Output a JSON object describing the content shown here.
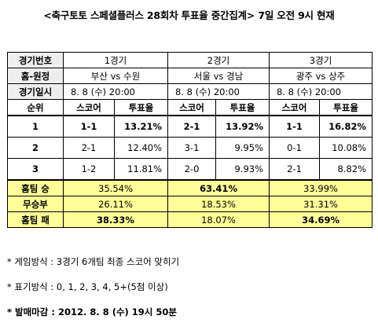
{
  "title": "<축구토토 스페셜플러스 28회차 투표율 중간집계> 7일 오전 9시 현재",
  "header": {
    "row_match": [
      "경기번호",
      "1경기",
      "2경기",
      "3경기"
    ],
    "row_teams": [
      "홈-원정",
      "부산 vs 수원",
      "서울 vs 경남",
      "광주 vs 상주"
    ],
    "row_date": [
      "경기일시",
      "8. 8 (수) 20:00",
      "8. 8 (수) 20:00",
      "8. 8 (수) 20:00"
    ],
    "row_cols": [
      "순위",
      "스코어",
      "투표율",
      "스코어",
      "투표율",
      "스코어",
      "투표율"
    ]
  },
  "rank_rows": [
    {
      "rank": "1",
      "cells": [
        "1-1",
        "13.21%",
        "2-1",
        "13.92%",
        "1-1",
        "16.82%"
      ]
    },
    {
      "rank": "2",
      "cells": [
        "2-1",
        "12.40%",
        "3-1",
        "9.95%",
        "0-1",
        "10.08%"
      ]
    },
    {
      "rank": "3",
      "cells": [
        "1-2",
        "11.81%",
        "2-0",
        "9.93%",
        "2-1",
        "8.82%"
      ]
    }
  ],
  "result_rows": [
    {
      "label": "홈팀 승",
      "values": [
        "35.54%",
        "63.41%",
        "33.99%"
      ],
      "bold": [
        false,
        true,
        false
      ]
    },
    {
      "label": "무승부",
      "values": [
        "26.11%",
        "18.53%",
        "31.31%"
      ],
      "bold": [
        false,
        false,
        false
      ]
    },
    {
      "label": "홈팀 패",
      "values": [
        "38.33%",
        "18.07%",
        "34.69%"
      ],
      "bold": [
        true,
        false,
        true
      ]
    }
  ],
  "notes": [
    "* 게임방식 : 3경기 6개팀 최종 스코어 맞히기",
    "* 표기방식 : 0, 1, 2, 3, 4, 5+(5점 이상)",
    "* 발매마감 : 2012. 8. 8 (수) 19시 50분"
  ]
}
